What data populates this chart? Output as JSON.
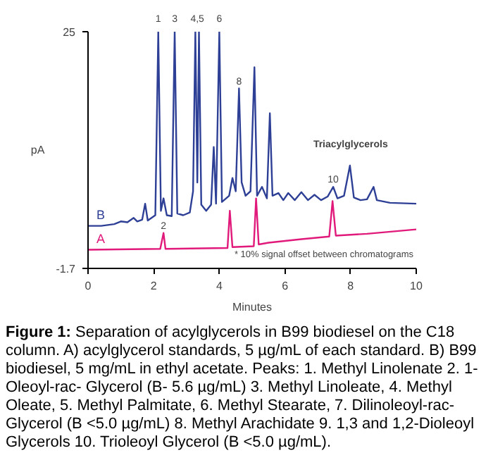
{
  "chart_data": {
    "type": "line",
    "xlabel": "Minutes",
    "ylabel": "pA",
    "xlim": [
      0,
      10
    ],
    "ylim": [
      -1.7,
      25
    ],
    "xticks": [
      0,
      2,
      4,
      6,
      8,
      10
    ],
    "yticks": [
      {
        "value": -1.7,
        "label": "-1.7"
      },
      25
    ],
    "grid": false,
    "legend": false,
    "marker": "none",
    "line_style": "solid",
    "series": [
      {
        "name": "B",
        "color": "#2e3f96",
        "x": [
          0,
          0.4,
          0.8,
          1.0,
          1.2,
          1.39,
          1.5,
          1.65,
          1.74,
          1.82,
          2.05,
          2.14,
          2.22,
          2.3,
          2.4,
          2.55,
          2.64,
          2.72,
          2.9,
          3.1,
          3.2,
          3.27,
          3.33,
          3.38,
          3.45,
          3.6,
          3.75,
          3.83,
          3.9,
          4.0,
          4.08,
          4.3,
          4.4,
          4.5,
          4.6,
          4.68,
          4.8,
          4.95,
          5.07,
          5.15,
          5.3,
          5.45,
          5.54,
          5.62,
          5.8,
          5.95,
          6.1,
          6.3,
          6.5,
          6.7,
          6.9,
          7.1,
          7.3,
          7.47,
          7.6,
          7.8,
          7.98,
          8.1,
          8.3,
          8.5,
          8.7,
          8.8,
          9.2,
          10
        ],
        "values": [
          3.1,
          3.1,
          3.3,
          3.6,
          3.5,
          4.0,
          3.6,
          3.8,
          5.6,
          3.7,
          4.3,
          25,
          4.8,
          6.2,
          4.3,
          4.2,
          25,
          4.5,
          4.3,
          4.6,
          7,
          25,
          8,
          25,
          5.5,
          4.8,
          5.5,
          12,
          5.6,
          25,
          5.8,
          6.5,
          8.5,
          7,
          18.6,
          8,
          6.5,
          7,
          21,
          6.5,
          7.5,
          6.2,
          15.8,
          6.5,
          6.8,
          6.0,
          6.8,
          6.0,
          6.9,
          6.0,
          6.6,
          6.0,
          6.4,
          7.5,
          6.2,
          6.5,
          9.9,
          6.3,
          6.0,
          6.1,
          7.5,
          6.0,
          5.7,
          5.6
        ]
      },
      {
        "name": "A",
        "color": "#e0197a",
        "x": [
          0,
          2.2,
          2.3,
          2.36,
          4.25,
          4.32,
          4.4,
          5.05,
          5.12,
          5.2,
          5.5,
          6.5,
          7.35,
          7.45,
          7.55,
          8.5,
          10
        ],
        "values": [
          0.4,
          0.5,
          2.3,
          0.5,
          0.6,
          4.8,
          0.7,
          0.8,
          6.2,
          1.0,
          1.2,
          1.6,
          1.9,
          5.9,
          2.0,
          2.2,
          2.7
        ]
      }
    ],
    "annotations": [
      "* 10% signal offset between chromatograms",
      "Triacylglycerols",
      "Figure 1: Separation of acylglycerols in B99 biodiesel on the C18 column. A) acylglycerol standards, 5 µg/mL of each standard. B) B99 biodiesel, 5 mg/mL in ethyl acetate. Peaks: 1. Methyl Linolenate 2. 1-Oleoyl-rac- Glycerol (B- 5.6 µg/mL) 3. Methyl Linoleate, 4. Methyl Oleate, 5. Methyl Palmitate, 6. Methyl Stearate, 7. Dilinoleoyl-rac-Glycerol (B <5.0 µg/mL) 8. Methyl Arachidate 9. 1,3 and 1,2-Dioleoyl Glycerols 10. Trioleoyl Glycerol (B <5.0 µg/mL).",
      {
        "text": "1",
        "x": 2.14,
        "y": 25
      },
      {
        "text": "3",
        "x": 2.64,
        "y": 25
      },
      {
        "text": "4,5",
        "x": 3.33,
        "y": 25
      },
      {
        "text": "6",
        "x": 4.0,
        "y": 25
      },
      {
        "text": "8",
        "x": 4.6,
        "y": 18.6
      },
      {
        "text": "2",
        "x": 2.3,
        "y": 2.3
      },
      {
        "text": "10",
        "x": 7.47,
        "y": 7.5
      }
    ]
  }
}
